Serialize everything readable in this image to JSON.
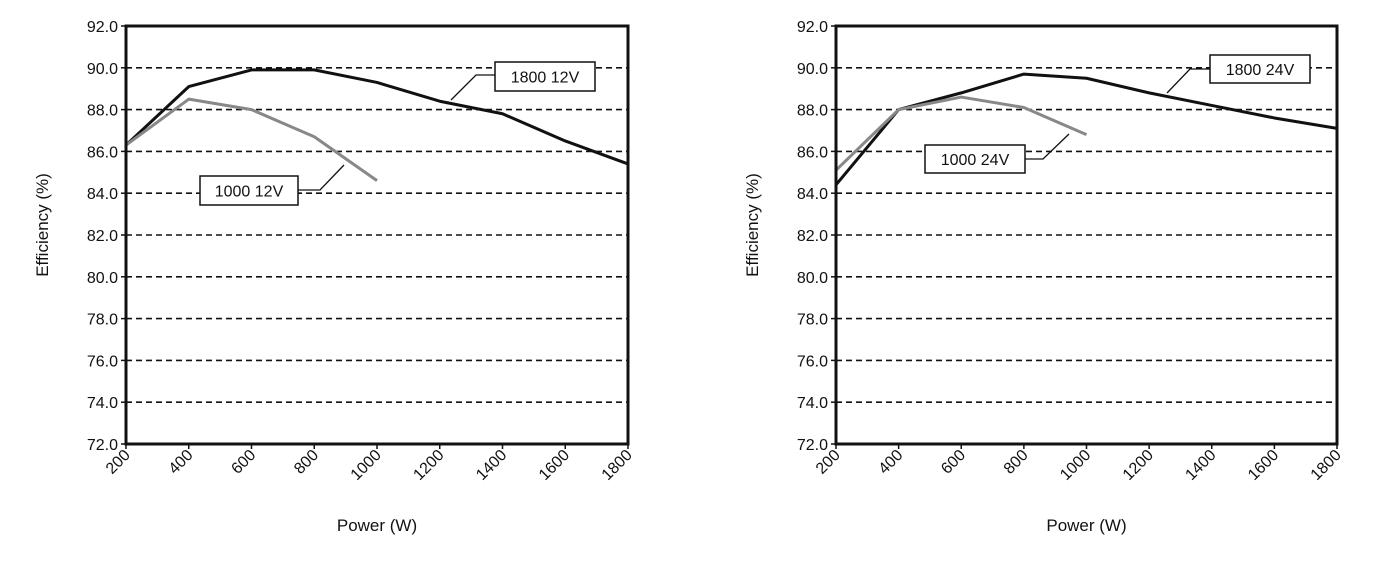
{
  "chart_data": [
    {
      "type": "line",
      "xlabel": "Power (W)",
      "ylabel": "Efficiency (%)",
      "xlim": [
        200,
        1800
      ],
      "ylim": [
        72,
        92
      ],
      "x_ticks": [
        "200",
        "400",
        "600",
        "800",
        "1000",
        "1200",
        "1400",
        "1600",
        "1800"
      ],
      "y_ticks": [
        "72.0",
        "74.0",
        "76.0",
        "78.0",
        "80.0",
        "82.0",
        "84.0",
        "86.0",
        "88.0",
        "90.0",
        "92.0"
      ],
      "grid": true,
      "series": [
        {
          "name": "1800 12V",
          "color": "#111111",
          "x": [
            200,
            400,
            600,
            800,
            1000,
            1200,
            1400,
            1600,
            1800
          ],
          "values": [
            86.3,
            89.1,
            89.9,
            89.9,
            89.3,
            88.4,
            87.8,
            86.5,
            85.4
          ]
        },
        {
          "name": "1000 12V",
          "color": "#888888",
          "x": [
            200,
            400,
            600,
            800,
            1000
          ],
          "values": [
            86.3,
            88.5,
            88.0,
            86.7,
            84.6
          ]
        }
      ]
    },
    {
      "type": "line",
      "xlabel": "Power (W)",
      "ylabel": "Efficiency (%)",
      "xlim": [
        200,
        1800
      ],
      "ylim": [
        72,
        92
      ],
      "x_ticks": [
        "200",
        "400",
        "600",
        "800",
        "1000",
        "1200",
        "1400",
        "1600",
        "1800"
      ],
      "y_ticks": [
        "72.0",
        "74.0",
        "76.0",
        "78.0",
        "80.0",
        "82.0",
        "84.0",
        "86.0",
        "88.0",
        "90.0",
        "92.0"
      ],
      "grid": true,
      "series": [
        {
          "name": "1800 24V",
          "color": "#111111",
          "x": [
            200,
            400,
            600,
            800,
            1000,
            1200,
            1400,
            1600,
            1800
          ],
          "values": [
            84.4,
            88.0,
            88.8,
            89.7,
            89.5,
            88.8,
            88.2,
            87.6,
            87.1
          ]
        },
        {
          "name": "1000 24V",
          "color": "#888888",
          "x": [
            200,
            400,
            600,
            800,
            1000
          ],
          "values": [
            85.1,
            88.0,
            88.6,
            88.1,
            86.8
          ]
        }
      ]
    }
  ]
}
